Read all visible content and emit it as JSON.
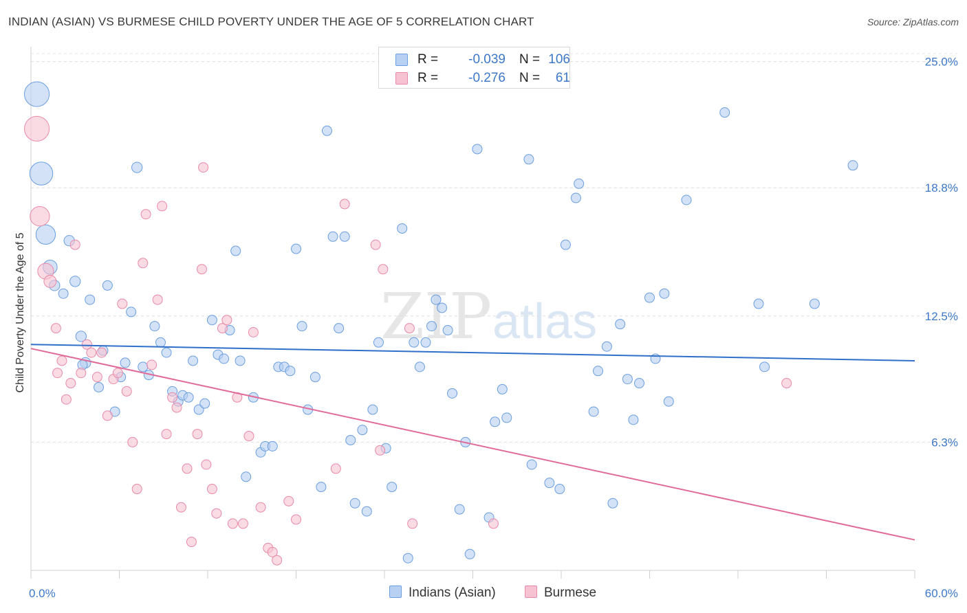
{
  "header": {
    "title": "INDIAN (ASIAN) VS BURMESE CHILD POVERTY UNDER THE AGE OF 5 CORRELATION CHART",
    "source": "Source: ZipAtlas.com"
  },
  "watermark": {
    "part1": "ZIP",
    "part2": "atlas"
  },
  "legend": {
    "rows": [
      {
        "r_label": "R =",
        "r_value": "-0.039",
        "n_label": "N =",
        "n_value": "106",
        "fill": "#b8d0f2",
        "stroke": "#6a9ee0"
      },
      {
        "r_label": "R =",
        "r_value": "-0.276",
        "n_label": "N =",
        "n_value": "61",
        "fill": "#f7c3d2",
        "stroke": "#e889a8"
      }
    ]
  },
  "bottom_legend": [
    {
      "label": "Indians (Asian)",
      "fill": "#b8d0f2",
      "stroke": "#6a9ee0"
    },
    {
      "label": "Burmese",
      "fill": "#f7c3d2",
      "stroke": "#e889a8"
    }
  ],
  "chart_data": {
    "type": "scatter",
    "title": "INDIAN (ASIAN) VS BURMESE CHILD POVERTY UNDER THE AGE OF 5 CORRELATION CHART",
    "xlabel": "",
    "ylabel": "Child Poverty Under the Age of 5",
    "xlim": [
      0,
      60
    ],
    "ylim": [
      0,
      26
    ],
    "x_tick_labels": [
      {
        "value": 0,
        "label": "0.0%"
      },
      {
        "value": 60,
        "label": "60.0%"
      }
    ],
    "y_tick_labels": [
      {
        "value": 6.3,
        "label": "6.3%"
      },
      {
        "value": 12.5,
        "label": "12.5%"
      },
      {
        "value": 18.8,
        "label": "18.8%"
      },
      {
        "value": 25.0,
        "label": "25.0%"
      }
    ],
    "grid": "horizontal dashed",
    "series": [
      {
        "name": "Indians (Asian)",
        "color": "#6a9ee0",
        "fill": "#b8d0f2",
        "trend": {
          "x": [
            0,
            60
          ],
          "y": [
            11.1,
            10.3
          ]
        },
        "points": [
          [
            0.4,
            23.4,
            3.2
          ],
          [
            0.7,
            19.5,
            3.0
          ],
          [
            1.0,
            16.5,
            2.6
          ],
          [
            1.3,
            14.9,
            2.0
          ],
          [
            1.6,
            14.0,
            1.6
          ],
          [
            2.6,
            16.2,
            1.6
          ],
          [
            3.0,
            14.2,
            1.6
          ],
          [
            3.4,
            11.5,
            1.6
          ],
          [
            3.7,
            10.2,
            1.6
          ],
          [
            4.0,
            13.3,
            1.5
          ],
          [
            4.6,
            9.0,
            1.5
          ],
          [
            5.2,
            14.0,
            1.5
          ],
          [
            4.9,
            10.8,
            1.5
          ],
          [
            5.7,
            7.8,
            1.5
          ],
          [
            6.1,
            9.5,
            1.5
          ],
          [
            6.4,
            10.2,
            1.5
          ],
          [
            6.8,
            12.7,
            1.5
          ],
          [
            7.2,
            19.8,
            1.6
          ],
          [
            7.6,
            10.0,
            1.5
          ],
          [
            8.0,
            9.6,
            1.5
          ],
          [
            8.4,
            12.0,
            1.5
          ],
          [
            8.8,
            11.2,
            1.5
          ],
          [
            9.2,
            10.7,
            1.5
          ],
          [
            9.6,
            8.8,
            1.5
          ],
          [
            10.0,
            8.3,
            1.5
          ],
          [
            10.3,
            8.6,
            1.5
          ],
          [
            10.7,
            8.5,
            1.5
          ],
          [
            11.0,
            10.3,
            1.5
          ],
          [
            11.4,
            7.9,
            1.5
          ],
          [
            11.8,
            8.2,
            1.5
          ],
          [
            12.3,
            12.3,
            1.5
          ],
          [
            12.7,
            10.6,
            1.5
          ],
          [
            13.1,
            10.4,
            1.5
          ],
          [
            13.5,
            11.8,
            1.5
          ],
          [
            13.9,
            15.7,
            1.5
          ],
          [
            14.2,
            10.3,
            1.5
          ],
          [
            14.6,
            4.6,
            1.5
          ],
          [
            15.1,
            8.5,
            1.5
          ],
          [
            15.6,
            5.8,
            1.5
          ],
          [
            15.9,
            6.1,
            1.5
          ],
          [
            16.4,
            6.1,
            1.5
          ],
          [
            16.8,
            10.0,
            1.5
          ],
          [
            17.2,
            10.0,
            1.5
          ],
          [
            17.6,
            9.8,
            1.5
          ],
          [
            18.0,
            15.8,
            1.5
          ],
          [
            18.4,
            12.0,
            1.5
          ],
          [
            18.8,
            7.9,
            1.5
          ],
          [
            19.3,
            9.5,
            1.5
          ],
          [
            19.7,
            4.1,
            1.5
          ],
          [
            20.1,
            21.6,
            1.5
          ],
          [
            20.5,
            16.4,
            1.5
          ],
          [
            20.9,
            11.9,
            1.5
          ],
          [
            21.3,
            16.4,
            1.5
          ],
          [
            21.7,
            6.4,
            1.5
          ],
          [
            22.0,
            3.3,
            1.5
          ],
          [
            22.5,
            6.9,
            1.5
          ],
          [
            22.8,
            2.9,
            1.5
          ],
          [
            23.2,
            7.9,
            1.5
          ],
          [
            23.6,
            11.2,
            1.5
          ],
          [
            24.1,
            6.0,
            1.5
          ],
          [
            24.5,
            4.1,
            1.5
          ],
          [
            25.2,
            16.8,
            1.5
          ],
          [
            25.6,
            0.6,
            1.5
          ],
          [
            26.0,
            11.2,
            1.5
          ],
          [
            26.4,
            10.0,
            1.5
          ],
          [
            26.8,
            11.2,
            1.5
          ],
          [
            27.2,
            12.0,
            1.5
          ],
          [
            27.5,
            13.3,
            1.5
          ],
          [
            27.9,
            12.9,
            1.5
          ],
          [
            28.3,
            11.8,
            1.5
          ],
          [
            28.6,
            8.7,
            1.5
          ],
          [
            29.1,
            3.0,
            1.5
          ],
          [
            29.5,
            6.3,
            1.5
          ],
          [
            29.8,
            0.8,
            1.5
          ],
          [
            30.3,
            20.7,
            1.5
          ],
          [
            31.1,
            2.6,
            1.5
          ],
          [
            31.5,
            7.3,
            1.5
          ],
          [
            32.0,
            8.9,
            1.5
          ],
          [
            32.3,
            7.5,
            1.5
          ],
          [
            33.8,
            20.2,
            1.5
          ],
          [
            34.0,
            5.2,
            1.5
          ],
          [
            35.2,
            4.3,
            1.5
          ],
          [
            35.9,
            4.0,
            1.5
          ],
          [
            36.3,
            16.0,
            1.5
          ],
          [
            37.0,
            18.3,
            1.5
          ],
          [
            37.2,
            19.0,
            1.5
          ],
          [
            38.2,
            7.8,
            1.5
          ],
          [
            38.5,
            9.8,
            1.5
          ],
          [
            39.1,
            11.0,
            1.5
          ],
          [
            39.5,
            3.3,
            1.5
          ],
          [
            40.0,
            12.1,
            1.5
          ],
          [
            40.5,
            9.4,
            1.5
          ],
          [
            40.9,
            7.4,
            1.5
          ],
          [
            41.3,
            9.2,
            1.5
          ],
          [
            42.0,
            13.4,
            1.5
          ],
          [
            42.4,
            10.4,
            1.5
          ],
          [
            43.0,
            13.6,
            1.5
          ],
          [
            43.3,
            8.3,
            1.5
          ],
          [
            44.5,
            18.2,
            1.5
          ],
          [
            47.1,
            22.5,
            1.5
          ],
          [
            49.4,
            13.1,
            1.5
          ],
          [
            49.8,
            10.0,
            1.5
          ],
          [
            53.2,
            13.1,
            1.5
          ],
          [
            55.8,
            19.9,
            1.5
          ],
          [
            3.5,
            10.1,
            1.5
          ],
          [
            2.2,
            13.6,
            1.5
          ]
        ]
      },
      {
        "name": "Burmese",
        "color": "#e889a8",
        "fill": "#f7c3d2",
        "trend": {
          "x": [
            0,
            60
          ],
          "y": [
            10.9,
            1.5
          ]
        },
        "points": [
          [
            0.4,
            21.7,
            3.2
          ],
          [
            0.6,
            17.4,
            2.6
          ],
          [
            1.0,
            14.7,
            2.2
          ],
          [
            1.3,
            14.2,
            1.8
          ],
          [
            1.7,
            11.9,
            1.5
          ],
          [
            1.8,
            9.7,
            1.5
          ],
          [
            2.1,
            10.3,
            1.5
          ],
          [
            2.4,
            8.4,
            1.5
          ],
          [
            2.7,
            9.2,
            1.5
          ],
          [
            3.0,
            16.0,
            1.5
          ],
          [
            3.4,
            9.7,
            1.5
          ],
          [
            3.8,
            11.1,
            1.5
          ],
          [
            4.1,
            10.7,
            1.5
          ],
          [
            4.5,
            9.5,
            1.5
          ],
          [
            4.8,
            10.7,
            1.5
          ],
          [
            5.2,
            7.6,
            1.5
          ],
          [
            5.6,
            9.4,
            1.5
          ],
          [
            5.9,
            9.7,
            1.5
          ],
          [
            6.2,
            13.1,
            1.5
          ],
          [
            6.5,
            8.8,
            1.5
          ],
          [
            6.9,
            6.3,
            1.5
          ],
          [
            7.2,
            4.0,
            1.5
          ],
          [
            7.6,
            15.1,
            1.5
          ],
          [
            7.8,
            17.5,
            1.5
          ],
          [
            8.2,
            10.1,
            1.5
          ],
          [
            8.6,
            13.3,
            1.5
          ],
          [
            8.9,
            17.9,
            1.5
          ],
          [
            9.2,
            6.7,
            1.5
          ],
          [
            9.6,
            8.5,
            1.5
          ],
          [
            9.9,
            8.0,
            1.5
          ],
          [
            10.2,
            3.1,
            1.5
          ],
          [
            10.6,
            5.0,
            1.5
          ],
          [
            10.9,
            1.4,
            1.5
          ],
          [
            11.3,
            6.7,
            1.5
          ],
          [
            11.6,
            14.8,
            1.5
          ],
          [
            11.9,
            5.2,
            1.5
          ],
          [
            12.3,
            4.0,
            1.5
          ],
          [
            12.6,
            2.8,
            1.5
          ],
          [
            11.7,
            19.8,
            1.5
          ],
          [
            13.0,
            11.9,
            1.5
          ],
          [
            13.3,
            12.3,
            1.5
          ],
          [
            13.7,
            2.3,
            1.5
          ],
          [
            14.0,
            8.5,
            1.5
          ],
          [
            14.4,
            2.3,
            1.5
          ],
          [
            14.8,
            6.6,
            1.5
          ],
          [
            15.1,
            11.7,
            1.5
          ],
          [
            15.6,
            3.1,
            1.5
          ],
          [
            16.1,
            1.1,
            1.5
          ],
          [
            16.4,
            0.9,
            1.5
          ],
          [
            16.7,
            0.5,
            1.5
          ],
          [
            17.5,
            3.4,
            1.5
          ],
          [
            18.0,
            2.5,
            1.5
          ],
          [
            20.7,
            5.0,
            1.5
          ],
          [
            21.3,
            18.0,
            1.5
          ],
          [
            23.4,
            16.0,
            1.5
          ],
          [
            23.7,
            5.9,
            1.5
          ],
          [
            23.9,
            14.8,
            1.5
          ],
          [
            25.7,
            11.9,
            1.5
          ],
          [
            25.9,
            2.3,
            1.5
          ],
          [
            31.4,
            2.3,
            1.5
          ],
          [
            51.3,
            9.2,
            1.5
          ]
        ]
      }
    ]
  }
}
